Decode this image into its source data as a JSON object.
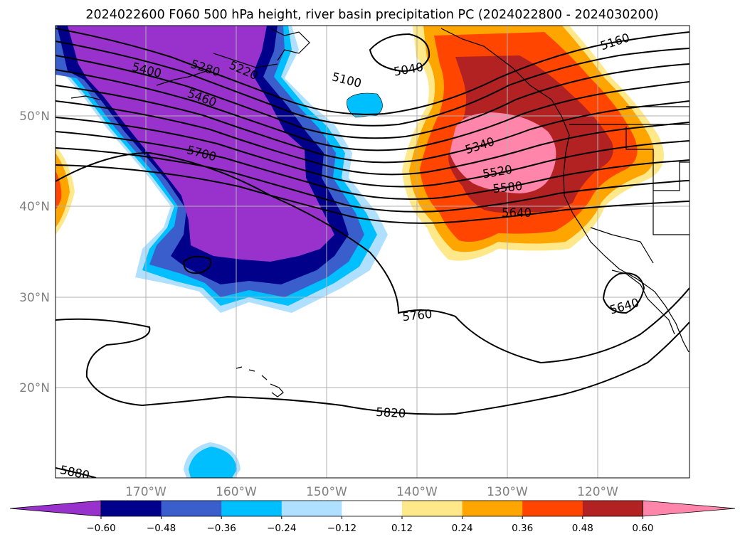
{
  "title": "2024022600 F060 500 hPa height, river basin precipitation PC (2024022800 - 2024030200)",
  "latitude_labels": [
    "50°N",
    "40°N",
    "30°N",
    "20°N"
  ],
  "longitude_labels": [
    "170°W",
    "160°W",
    "150°W",
    "140°W",
    "130°W",
    "120°W"
  ],
  "contour_labels": [
    "5400",
    "5280",
    "5220",
    "5460",
    "5700",
    "5100",
    "5040",
    "5160",
    "5340",
    "5520",
    "5580",
    "5640",
    "5760",
    "5640",
    "5820",
    "5880"
  ],
  "colorbar": {
    "tick_labels": [
      "−0.60",
      "−0.48",
      "−0.36",
      "−0.24",
      "−0.12",
      "0.12",
      "0.24",
      "0.36",
      "0.48",
      "0.60"
    ],
    "colors": [
      "#9932cc",
      "#00008b",
      "#3a5fcd",
      "#00bfff",
      "#b0e0ff",
      "#ffffff",
      "#ffe88a",
      "#ffa500",
      "#ff4500",
      "#b22222",
      "#ff85aa"
    ]
  },
  "colors": {
    "negative_strong": "#9932cc",
    "negative_high": "#00008b",
    "negative_mid": "#3a5fcd",
    "negative_low": "#00bfff",
    "negative_weak": "#b0e0ff",
    "positive_weak": "#ffe88a",
    "positive_low": "#ffa500",
    "positive_mid": "#ff4500",
    "positive_high": "#b22222",
    "positive_strong": "#ff85aa",
    "contour": "#000000",
    "grid": "#b0b0b0",
    "axis_label": "#808080"
  }
}
